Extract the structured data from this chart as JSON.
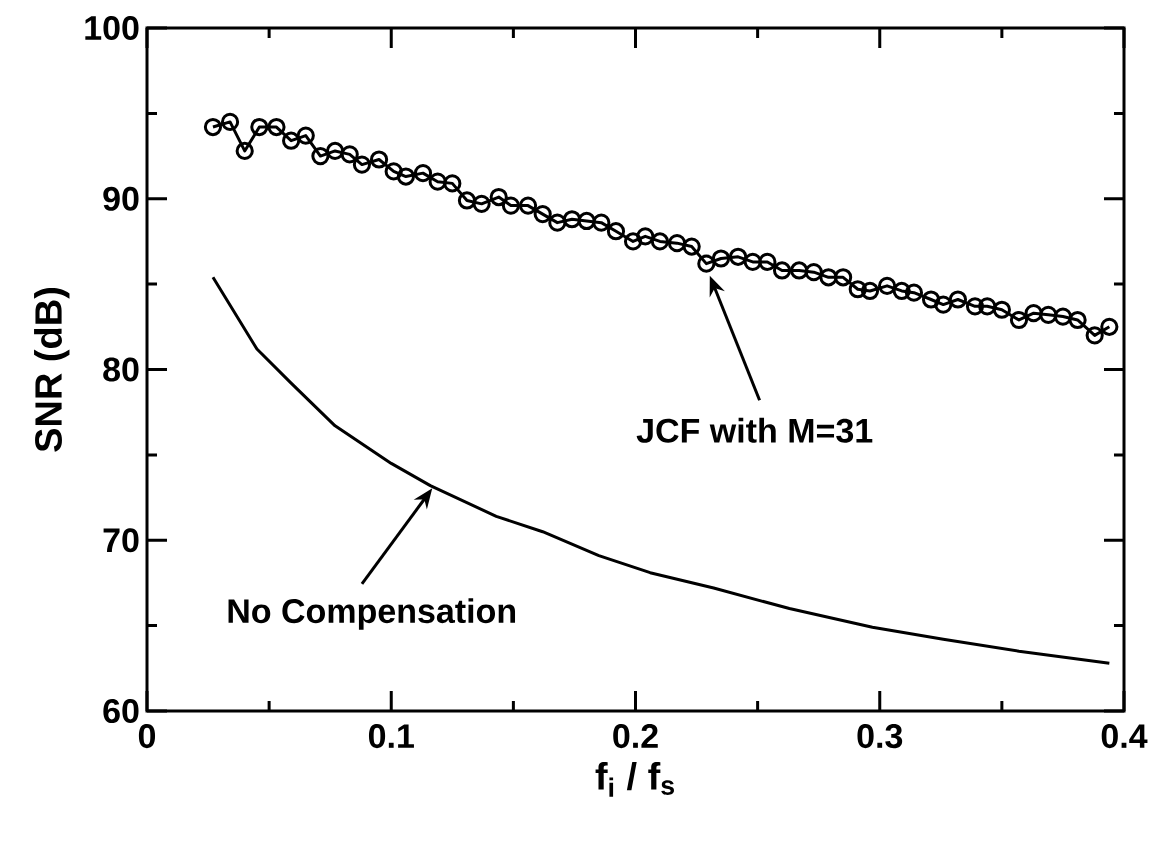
{
  "chart_data": {
    "type": "line",
    "xlabel": "f$_{i}$ / f$_{s}$",
    "ylabel": "SNR (dB)",
    "xlim": [
      0,
      0.4
    ],
    "ylim": [
      60,
      100
    ],
    "xticks": [
      0,
      {
        "value": 0.05,
        "label": null
      },
      0.1,
      {
        "value": 0.15,
        "label": null
      },
      0.2,
      {
        "value": 0.25,
        "label": null
      },
      0.3,
      {
        "value": 0.35,
        "label": null
      },
      0.4
    ],
    "yticks": [
      60,
      {
        "value": 65,
        "label": null
      },
      70,
      {
        "value": 75,
        "label": null
      },
      80,
      {
        "value": 85,
        "label": null
      },
      90,
      {
        "value": 95,
        "label": null
      },
      100
    ],
    "series": [
      {
        "color": "#000000",
        "marker": "circle",
        "line_style": "solid",
        "x": [
          0.027,
          0.034,
          0.04,
          0.046,
          0.053,
          0.059,
          0.065,
          0.071,
          0.077,
          0.083,
          0.088,
          0.095,
          0.101,
          0.106,
          0.113,
          0.119,
          0.125,
          0.131,
          0.137,
          0.144,
          0.149,
          0.156,
          0.162,
          0.168,
          0.174,
          0.18,
          0.186,
          0.192,
          0.199,
          0.204,
          0.21,
          0.217,
          0.223,
          0.229,
          0.235,
          0.242,
          0.248,
          0.254,
          0.26,
          0.267,
          0.273,
          0.279,
          0.285,
          0.291,
          0.296,
          0.303,
          0.309,
          0.314,
          0.321,
          0.326,
          0.332,
          0.339,
          0.344,
          0.35,
          0.357,
          0.363,
          0.369,
          0.375,
          0.381,
          0.388,
          0.394
        ],
        "values": [
          94.2,
          94.5,
          92.8,
          94.2,
          94.2,
          93.4,
          93.7,
          92.5,
          92.8,
          92.6,
          92.0,
          92.3,
          91.6,
          91.3,
          91.5,
          91.0,
          90.9,
          89.9,
          89.7,
          90.1,
          89.6,
          89.6,
          89.1,
          88.6,
          88.8,
          88.7,
          88.6,
          88.1,
          87.5,
          87.8,
          87.5,
          87.4,
          87.2,
          86.2,
          86.5,
          86.6,
          86.3,
          86.3,
          85.8,
          85.8,
          85.7,
          85.4,
          85.4,
          84.7,
          84.6,
          84.9,
          84.6,
          84.5,
          84.1,
          83.8,
          84.1,
          83.7,
          83.7,
          83.5,
          82.9,
          83.3,
          83.2,
          83.1,
          82.9,
          82.0,
          82.5
        ]
      },
      {
        "color": "#000000",
        "marker": "none",
        "line_style": "solid",
        "x": [
          0.027,
          0.045,
          0.059,
          0.077,
          0.1,
          0.116,
          0.143,
          0.162,
          0.185,
          0.206,
          0.232,
          0.263,
          0.297,
          0.326,
          0.357,
          0.394
        ],
        "values": [
          85.4,
          81.2,
          79.2,
          76.7,
          74.5,
          73.2,
          71.4,
          70.5,
          69.1,
          68.1,
          67.2,
          66.0,
          64.9,
          64.2,
          63.5,
          62.8
        ]
      }
    ],
    "annotations": [
      "JCF with M=31",
      "No Compensation"
    ]
  }
}
